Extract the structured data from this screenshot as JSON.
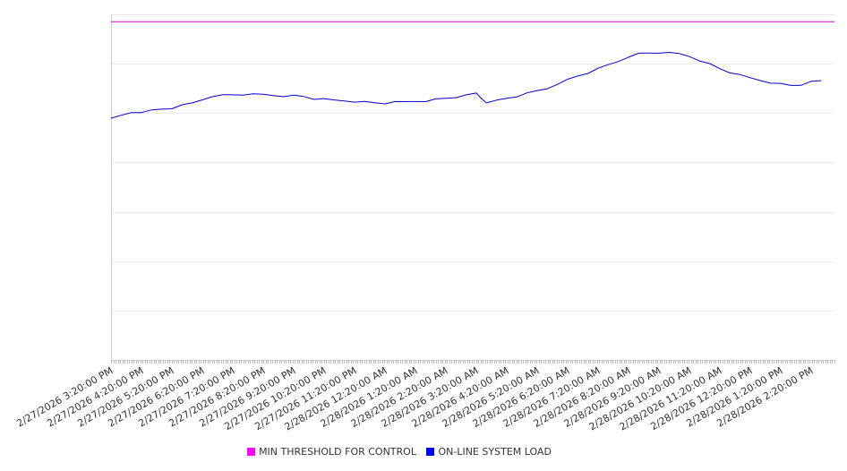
{
  "chart_data": {
    "type": "line",
    "ylim": [
      0,
      1400
    ],
    "grid": true,
    "legend_position": "bottom-center",
    "x_tick_labels": [
      "2/27/2026 3:20:00 PM",
      "2/27/2026 4:20:00 PM",
      "2/27/2026 5:20:00 PM",
      "2/27/2026 6:20:00 PM",
      "2/27/2026 7:20:00 PM",
      "2/27/2026 8:20:00 PM",
      "2/27/2026 9:20:00 PM",
      "2/27/2026 10:20:00 PM",
      "2/27/2026 11:20:00 PM",
      "2/28/2026 12:20:00 AM",
      "2/28/2026 1:20:00 AM",
      "2/28/2026 2:20:00 AM",
      "2/28/2026 3:20:00 AM",
      "2/28/2026 4:20:00 AM",
      "2/28/2026 5:20:00 AM",
      "2/28/2026 6:20:00 AM",
      "2/28/2026 7:20:00 AM",
      "2/28/2026 8:20:00 AM",
      "2/28/2026 9:20:00 AM",
      "2/28/2026 10:20:00 AM",
      "2/28/2026 11:20:00 AM",
      "2/28/2026 12:20:00 PM",
      "2/28/2026 1:20:00 PM",
      "2/28/2026 2:20:00 PM"
    ],
    "series": [
      {
        "name": "MIN THRESHOLD FOR CONTROL",
        "color": "#cc00cc",
        "x": [
          "2/27/2026 3:20:00 PM",
          "2/28/2026 2:20:00 PM"
        ],
        "y": [
          1370,
          1370
        ]
      },
      {
        "name": "ON-LINE SYSTEM LOAD",
        "color": "#0000cc",
        "x": [
          "2/27/2026 3:20:00 PM",
          "2/27/2026 3:40:00 PM",
          "2/27/2026 4:00:00 PM",
          "2/27/2026 4:20:00 PM",
          "2/27/2026 4:40:00 PM",
          "2/27/2026 5:00:00 PM",
          "2/27/2026 5:20:00 PM",
          "2/27/2026 5:40:00 PM",
          "2/27/2026 6:00:00 PM",
          "2/27/2026 6:20:00 PM",
          "2/27/2026 6:40:00 PM",
          "2/27/2026 7:00:00 PM",
          "2/27/2026 7:20:00 PM",
          "2/27/2026 7:40:00 PM",
          "2/27/2026 8:00:00 PM",
          "2/27/2026 8:20:00 PM",
          "2/27/2026 8:40:00 PM",
          "2/27/2026 9:00:00 PM",
          "2/27/2026 9:20:00 PM",
          "2/27/2026 9:40:00 PM",
          "2/27/2026 10:00:00 PM",
          "2/27/2026 10:20:00 PM",
          "2/27/2026 10:40:00 PM",
          "2/27/2026 11:00:00 PM",
          "2/27/2026 11:20:00 PM",
          "2/27/2026 11:40:00 PM",
          "2/28/2026 12:00:00 AM",
          "2/28/2026 12:20:00 AM",
          "2/28/2026 12:40:00 AM",
          "2/28/2026 1:00:00 AM",
          "2/28/2026 1:20:00 AM",
          "2/28/2026 1:40:00 AM",
          "2/28/2026 2:00:00 AM",
          "2/28/2026 2:20:00 AM",
          "2/28/2026 2:40:00 AM",
          "2/28/2026 3:00:00 AM",
          "2/28/2026 3:20:00 AM",
          "2/28/2026 3:30:00 AM",
          "2/28/2026 3:40:00 AM",
          "2/28/2026 4:00:00 AM",
          "2/28/2026 4:20:00 AM",
          "2/28/2026 4:40:00 AM",
          "2/28/2026 5:00:00 AM",
          "2/28/2026 5:20:00 AM",
          "2/28/2026 5:40:00 AM",
          "2/28/2026 6:00:00 AM",
          "2/28/2026 6:20:00 AM",
          "2/28/2026 6:40:00 AM",
          "2/28/2026 7:00:00 AM",
          "2/28/2026 7:20:00 AM",
          "2/28/2026 7:40:00 AM",
          "2/28/2026 8:00:00 AM",
          "2/28/2026 8:20:00 AM",
          "2/28/2026 8:40:00 AM",
          "2/28/2026 9:00:00 AM",
          "2/28/2026 9:20:00 AM",
          "2/28/2026 9:40:00 AM",
          "2/28/2026 10:00:00 AM",
          "2/28/2026 10:20:00 AM",
          "2/28/2026 10:40:00 AM",
          "2/28/2026 11:00:00 AM",
          "2/28/2026 11:20:00 AM",
          "2/28/2026 11:40:00 AM",
          "2/28/2026 12:00:00 PM",
          "2/28/2026 12:20:00 PM",
          "2/28/2026 12:40:00 PM",
          "2/28/2026 1:00:00 PM",
          "2/28/2026 1:20:00 PM",
          "2/28/2026 1:40:00 PM",
          "2/28/2026 2:00:00 PM",
          "2/28/2026 2:20:00 PM",
          "2/28/2026 2:40:00 PM"
        ],
        "y": [
          975,
          990,
          1003,
          1006,
          1010,
          1016,
          1020,
          1030,
          1040,
          1055,
          1070,
          1072,
          1074,
          1075,
          1074,
          1075,
          1072,
          1070,
          1070,
          1067,
          1058,
          1055,
          1052,
          1050,
          1048,
          1045,
          1042,
          1040,
          1043,
          1045,
          1048,
          1050,
          1055,
          1060,
          1065,
          1070,
          1080,
          1060,
          1045,
          1050,
          1060,
          1068,
          1078,
          1090,
          1100,
          1120,
          1135,
          1150,
          1163,
          1178,
          1195,
          1210,
          1230,
          1240,
          1243,
          1245,
          1242,
          1240,
          1230,
          1215,
          1198,
          1180,
          1165,
          1152,
          1142,
          1133,
          1125,
          1118,
          1112,
          1115,
          1125,
          1130
        ]
      }
    ]
  }
}
